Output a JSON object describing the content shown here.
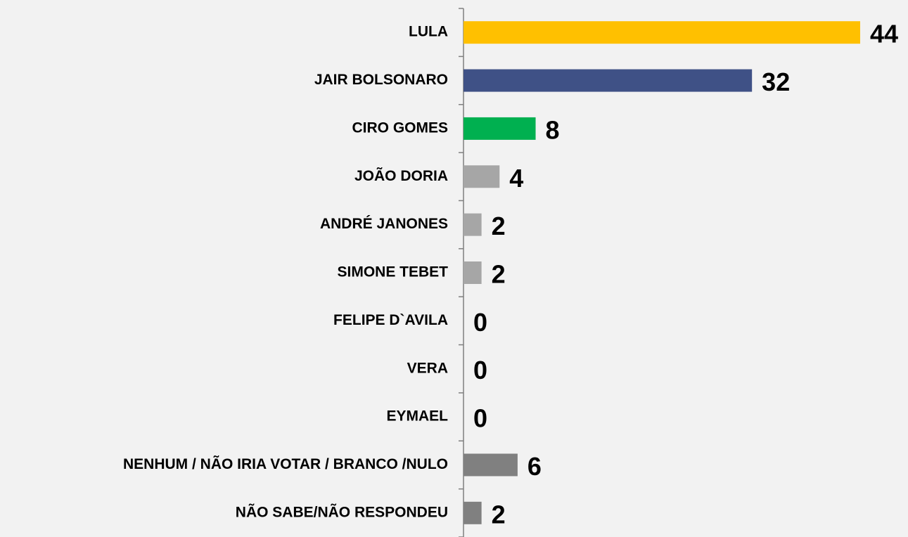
{
  "chart_data": {
    "type": "hbar",
    "categories": [
      "LULA",
      "JAIR BOLSONARO",
      "CIRO GOMES",
      "JOÃO DORIA",
      "ANDRÉ JANONES",
      "SIMONE TEBET",
      "FELIPE D`AVILA",
      "VERA",
      "EYMAEL",
      "NENHUM / NÃO IRIA VOTAR / BRANCO /NULO",
      "NÃO SABE/NÃO RESPONDEU"
    ],
    "values": [
      44,
      32,
      8,
      4,
      2,
      2,
      0,
      0,
      0,
      6,
      2
    ],
    "colors": [
      "#ffc000",
      "#3f5186",
      "#00b050",
      "#a6a6a6",
      "#a6a6a6",
      "#a6a6a6",
      "#a6a6a6",
      "#a6a6a6",
      "#a6a6a6",
      "#808080",
      "#808080"
    ],
    "xlim": [
      0,
      44
    ]
  }
}
